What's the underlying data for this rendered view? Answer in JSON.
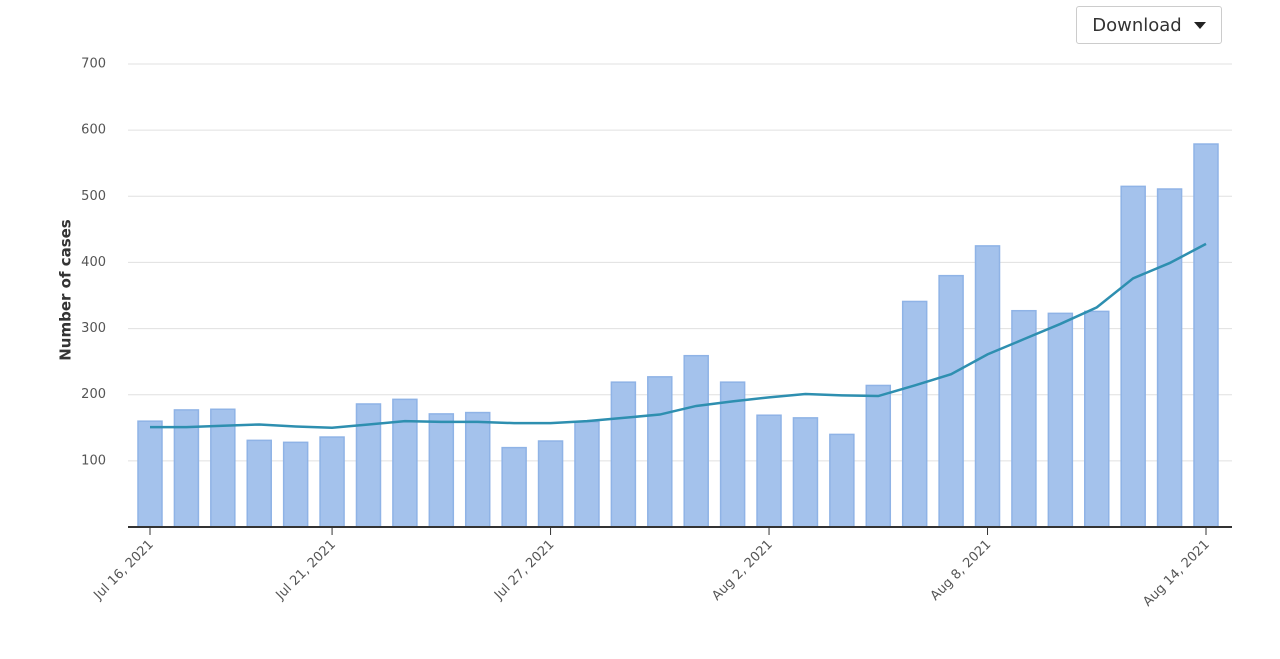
{
  "chart_data": {
    "type": "bar-line",
    "y_label": "Number of cases",
    "button": "Download",
    "categories": [
      "Jul 16, 2021",
      null,
      null,
      null,
      null,
      "Jul 21, 2021",
      null,
      null,
      null,
      null,
      null,
      "Jul 27, 2021",
      null,
      null,
      null,
      null,
      null,
      "Aug 2, 2021",
      null,
      null,
      null,
      null,
      null,
      "Aug 8, 2021",
      null,
      null,
      null,
      null,
      null,
      "Aug 14, 2021"
    ],
    "series": [
      {
        "type": "bar",
        "color": "#a4c2ec",
        "values": [
          160,
          177,
          178,
          131,
          128,
          136,
          186,
          193,
          171,
          173,
          120,
          130,
          159,
          219,
          227,
          259,
          219,
          169,
          165,
          140,
          214,
          341,
          380,
          425,
          327,
          323,
          326,
          515,
          511,
          579
        ]
      },
      {
        "type": "line",
        "color": "#2e8fb0",
        "values": [
          151,
          151,
          153,
          155,
          152,
          150,
          155,
          160,
          159,
          159,
          157,
          157,
          160,
          165,
          170,
          183,
          190,
          196,
          201,
          199,
          198,
          214,
          231,
          261,
          284,
          307,
          332,
          376,
          399,
          428
        ]
      }
    ],
    "ylim": [
      0,
      700
    ],
    "yticks": [
      100,
      200,
      300,
      400,
      500,
      600,
      700
    ],
    "grid": true
  }
}
